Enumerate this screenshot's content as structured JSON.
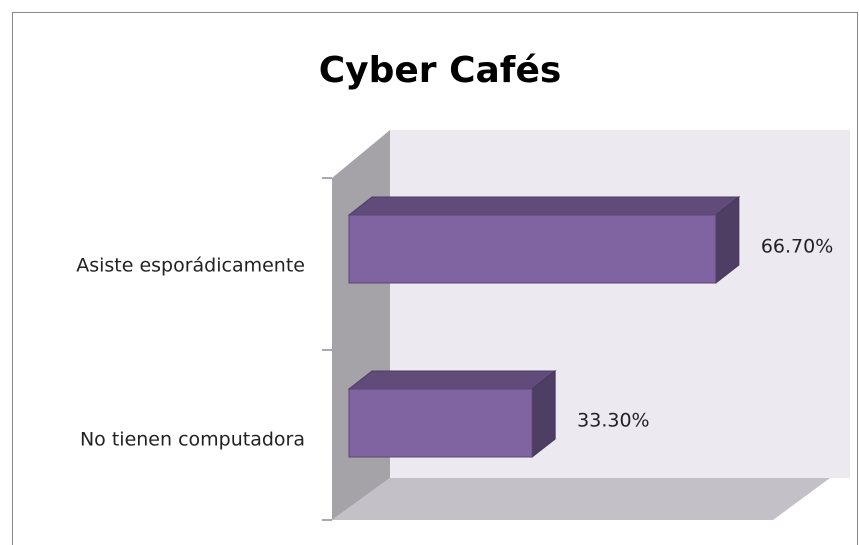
{
  "chart_data": {
    "type": "bar",
    "orientation": "horizontal",
    "three_d": true,
    "title": "Cyber Cafés",
    "categories": [
      "Asiste esporádicamente",
      "No tienen computadora"
    ],
    "values": [
      66.7,
      33.3
    ],
    "value_labels": [
      "66.70%",
      "33.30%"
    ],
    "color": "#8064a2",
    "xlim": [
      0,
      80
    ]
  }
}
